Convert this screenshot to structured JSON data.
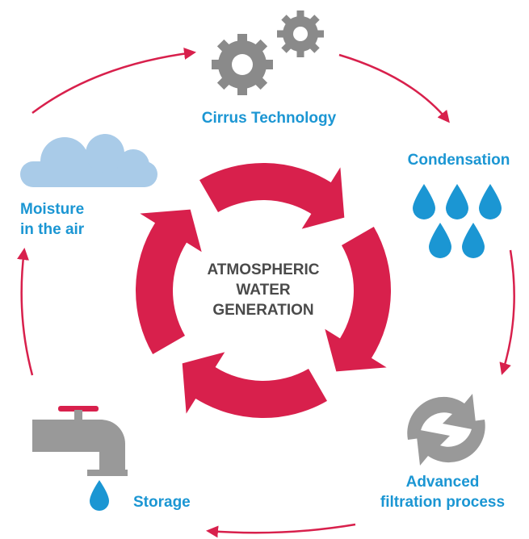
{
  "center": [
    "ATMOSPHERIC",
    "WATER",
    "GENERATION"
  ],
  "steps": [
    {
      "label": [
        "Cirrus Technology"
      ]
    },
    {
      "label": [
        "Condensation"
      ]
    },
    {
      "label": [
        "Advanced",
        "filtration process"
      ]
    },
    {
      "label": [
        "Storage"
      ]
    },
    {
      "label": [
        "Moisture",
        "in the air"
      ]
    }
  ]
}
